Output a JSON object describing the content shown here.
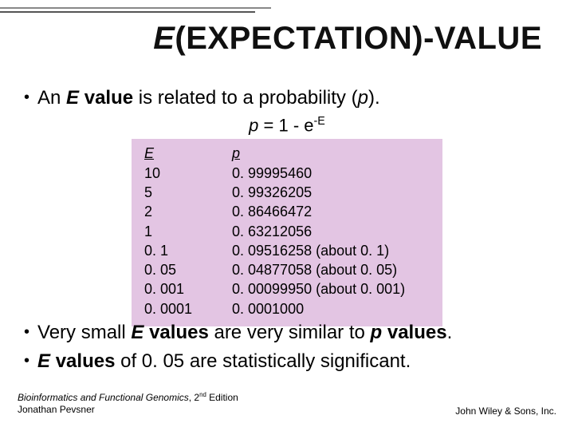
{
  "title": {
    "italic_part": "E",
    "rest": "(EXPECTATION)-VALUE",
    "fontsize": 40,
    "color": "#101010"
  },
  "intro": {
    "prefix": "An ",
    "e_bold_ital": "E",
    "mid": " value",
    "after_bold": " is related to a probability (",
    "p_ital": "p",
    "suffix": ")."
  },
  "formula": {
    "p": "p",
    "eq": " = 1 - e",
    "exp": "-E"
  },
  "table": {
    "background_color": "#e3c5e3",
    "header_e": "E",
    "header_p": "p",
    "fontsize": 18,
    "rows": [
      {
        "e": "10",
        "p": "0. 99995460"
      },
      {
        "e": "5",
        "p": "0. 99326205"
      },
      {
        "e": "2",
        "p": "0. 86466472"
      },
      {
        "e": "1",
        "p": "0. 63212056"
      },
      {
        "e": "0. 1",
        "p": "0. 09516258 (about 0. 1)"
      },
      {
        "e": "0. 05",
        "p": "0. 04877058 (about 0. 05)"
      },
      {
        "e": "0. 001",
        "p": "0. 00099950 (about 0. 001)"
      },
      {
        "e": "0. 0001",
        "p": "0. 0001000"
      }
    ]
  },
  "conclusion1": {
    "prefix": "Very small ",
    "e_bold_ital": "E",
    "mid1": " values",
    "mid2": " are very similar to ",
    "p_ital": "p",
    "mid3": " values",
    "suffix": "."
  },
  "conclusion2": {
    "e_bold_ital": "E",
    "mid": " values",
    "rest": " of 0. 05 are statistically significant."
  },
  "footer": {
    "book_title": "Bioinformatics and Functional Genomics",
    "edition_label": ", 2",
    "edition_sup": "nd",
    "edition_suffix": " Edition",
    "author": "Jonathan Pevsner",
    "publisher": "John Wiley & Sons, Inc."
  },
  "colors": {
    "background": "#ffffff",
    "text": "#000000",
    "deco_line": "#555555"
  }
}
